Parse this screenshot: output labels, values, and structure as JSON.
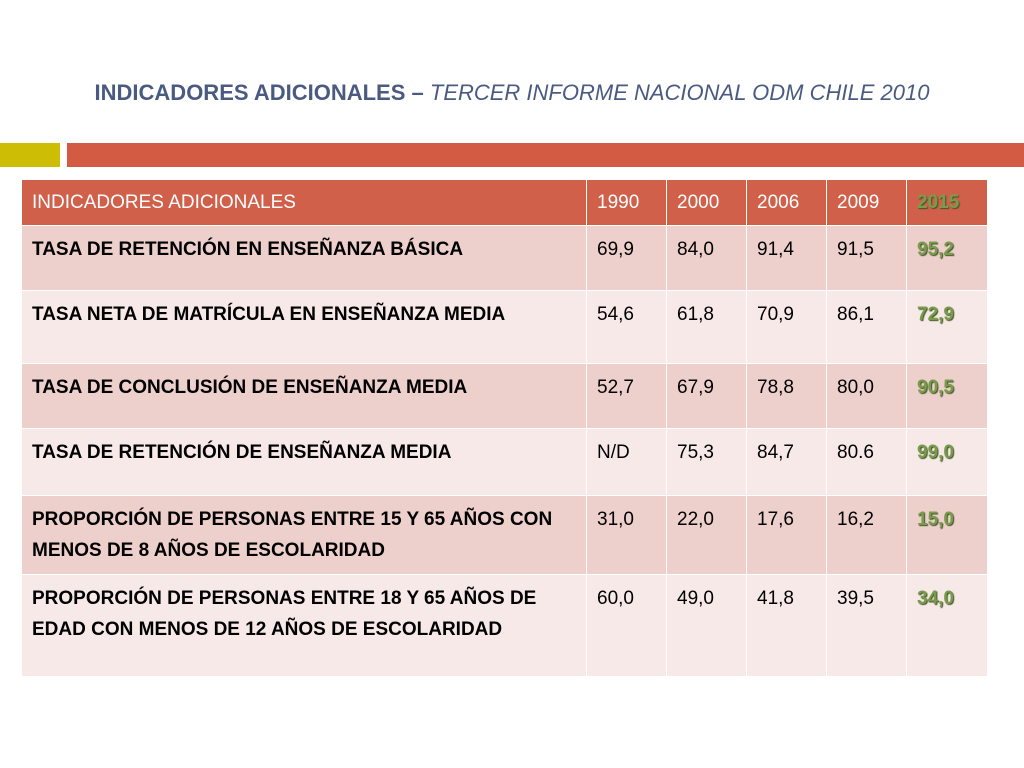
{
  "slide": {
    "title_main": "INDICADORES ADICIONALES –",
    "title_sub": "TERCER INFORME NACIONAL ODM CHILE 2010"
  },
  "colors": {
    "title": "#4a5a80",
    "bar_left": "#cdbd05",
    "bar_right": "#d45b43",
    "header_bg": "#d0604a",
    "row_odd": "#edcfcc",
    "row_even": "#f7e9e8",
    "highlight_text": "#7a9b4c"
  },
  "table": {
    "headers": [
      "INDICADORES ADICIONALES",
      "1990",
      "2000",
      "2006",
      "2009",
      "2015"
    ],
    "rows": [
      {
        "label": "TASA DE RETENCIÓN EN ENSEÑANZA BÁSICA",
        "v1990": "69,9",
        "v2000": "84,0",
        "v2006": "91,4",
        "v2009": "91,5",
        "v2015": "95,2"
      },
      {
        "label": "TASA NETA DE MATRÍCULA EN ENSEÑANZA MEDIA",
        "v1990": "54,6",
        "v2000": "61,8",
        "v2006": "70,9",
        "v2009": "86,1",
        "v2015": "72,9"
      },
      {
        "label": "TASA DE CONCLUSIÓN DE ENSEÑANZA MEDIA",
        "v1990": "52,7",
        "v2000": "67,9",
        "v2006": "78,8",
        "v2009": "80,0",
        "v2015": "90,5"
      },
      {
        "label": "TASA DE RETENCIÓN DE ENSEÑANZA MEDIA",
        "v1990": "N/D",
        "v2000": "75,3",
        "v2006": "84,7",
        "v2009": "80.6",
        "v2015": "99,0"
      },
      {
        "label": "PROPORCIÓN DE PERSONAS ENTRE 15 Y 65 AÑOS CON MENOS DE 8 AÑOS DE ESCOLARIDAD",
        "v1990": "31,0",
        "v2000": "22,0",
        "v2006": "17,6",
        "v2009": "16,2",
        "v2015": "15,0"
      },
      {
        "label": "PROPORCIÓN DE PERSONAS ENTRE 18 Y 65 AÑOS DE EDAD CON MENOS DE 12 AÑOS DE ESCOLARIDAD",
        "v1990": "60,0",
        "v2000": "49,0",
        "v2006": "41,8",
        "v2009": "39,5",
        "v2015": "34,0"
      }
    ]
  }
}
